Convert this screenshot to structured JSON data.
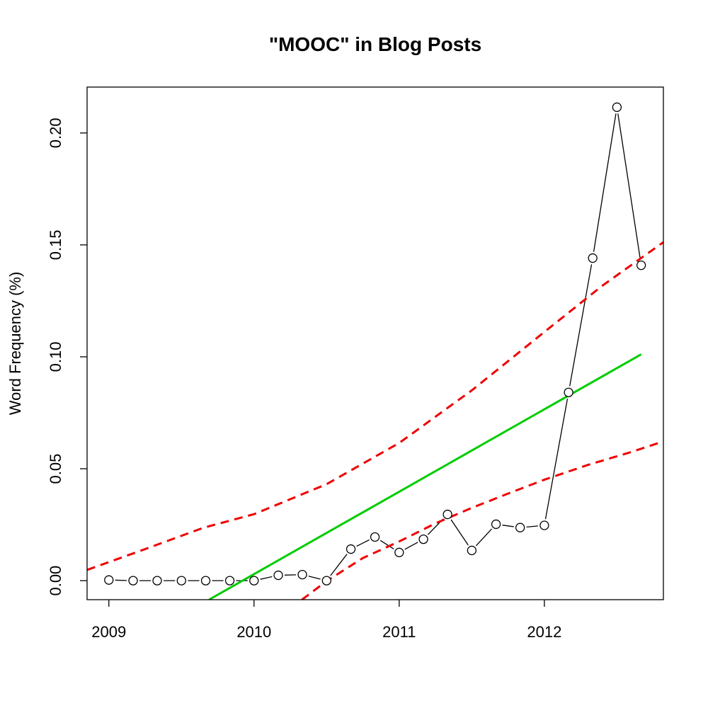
{
  "chart_data": {
    "type": "line",
    "title": "\"MOOC\" in Blog Posts",
    "xlabel": "",
    "ylabel": "Word Frequency (%)",
    "xlim": [
      2008.85,
      2012.82
    ],
    "ylim": [
      -0.0085,
      0.2205
    ],
    "grid": false,
    "x_ticks": [
      2009,
      2010,
      2011,
      2012
    ],
    "y_ticks": [
      0.0,
      0.05,
      0.1,
      0.15,
      0.2
    ],
    "x_tick_labels": [
      "2009",
      "2010",
      "2011",
      "2012"
    ],
    "y_tick_labels": [
      "0.00",
      "0.05",
      "0.10",
      "0.15",
      "0.20"
    ],
    "series": [
      {
        "style": "points-and-lines",
        "color": "#000000",
        "x": [
          2009.0,
          2009.167,
          2009.333,
          2009.5,
          2009.667,
          2009.833,
          2010.0,
          2010.167,
          2010.333,
          2010.5,
          2010.667,
          2010.833,
          2011.0,
          2011.167,
          2011.333,
          2011.5,
          2011.667,
          2011.833,
          2012.0,
          2012.167,
          2012.333,
          2012.5,
          2012.667
        ],
        "y": [
          0.0003,
          0.0,
          0.0,
          0.0,
          0.0,
          0.0,
          0.0,
          0.0024,
          0.0027,
          0.0,
          0.0141,
          0.0195,
          0.0126,
          0.0185,
          0.0296,
          0.0135,
          0.0252,
          0.0237,
          0.0247,
          0.0841,
          0.1441,
          0.2115,
          0.1409
        ]
      },
      {
        "style": "solid-line",
        "color": "#00cc00",
        "x": [
          2009.69,
          2012.667
        ],
        "y": [
          -0.0085,
          0.1011
        ]
      },
      {
        "style": "dashed-line",
        "color": "#ee0000",
        "x": [
          2008.85,
          2009.25,
          2009.65,
          2010.0,
          2010.5,
          2011.0,
          2011.5,
          2012.0,
          2012.4,
          2012.82
        ],
        "y": [
          0.0048,
          0.0141,
          0.0236,
          0.0297,
          0.0431,
          0.0615,
          0.085,
          0.1111,
          0.1318,
          0.1512
        ]
      },
      {
        "style": "dashed-line",
        "color": "#ee0000",
        "x": [
          2010.33,
          2010.5,
          2010.75,
          2011.0,
          2011.25,
          2011.5,
          2011.75,
          2012.0,
          2012.3,
          2012.6,
          2012.82
        ],
        "y": [
          -0.0085,
          -0.0002,
          0.0101,
          0.0175,
          0.0256,
          0.0325,
          0.0389,
          0.0451,
          0.0517,
          0.0575,
          0.0622
        ]
      }
    ]
  }
}
